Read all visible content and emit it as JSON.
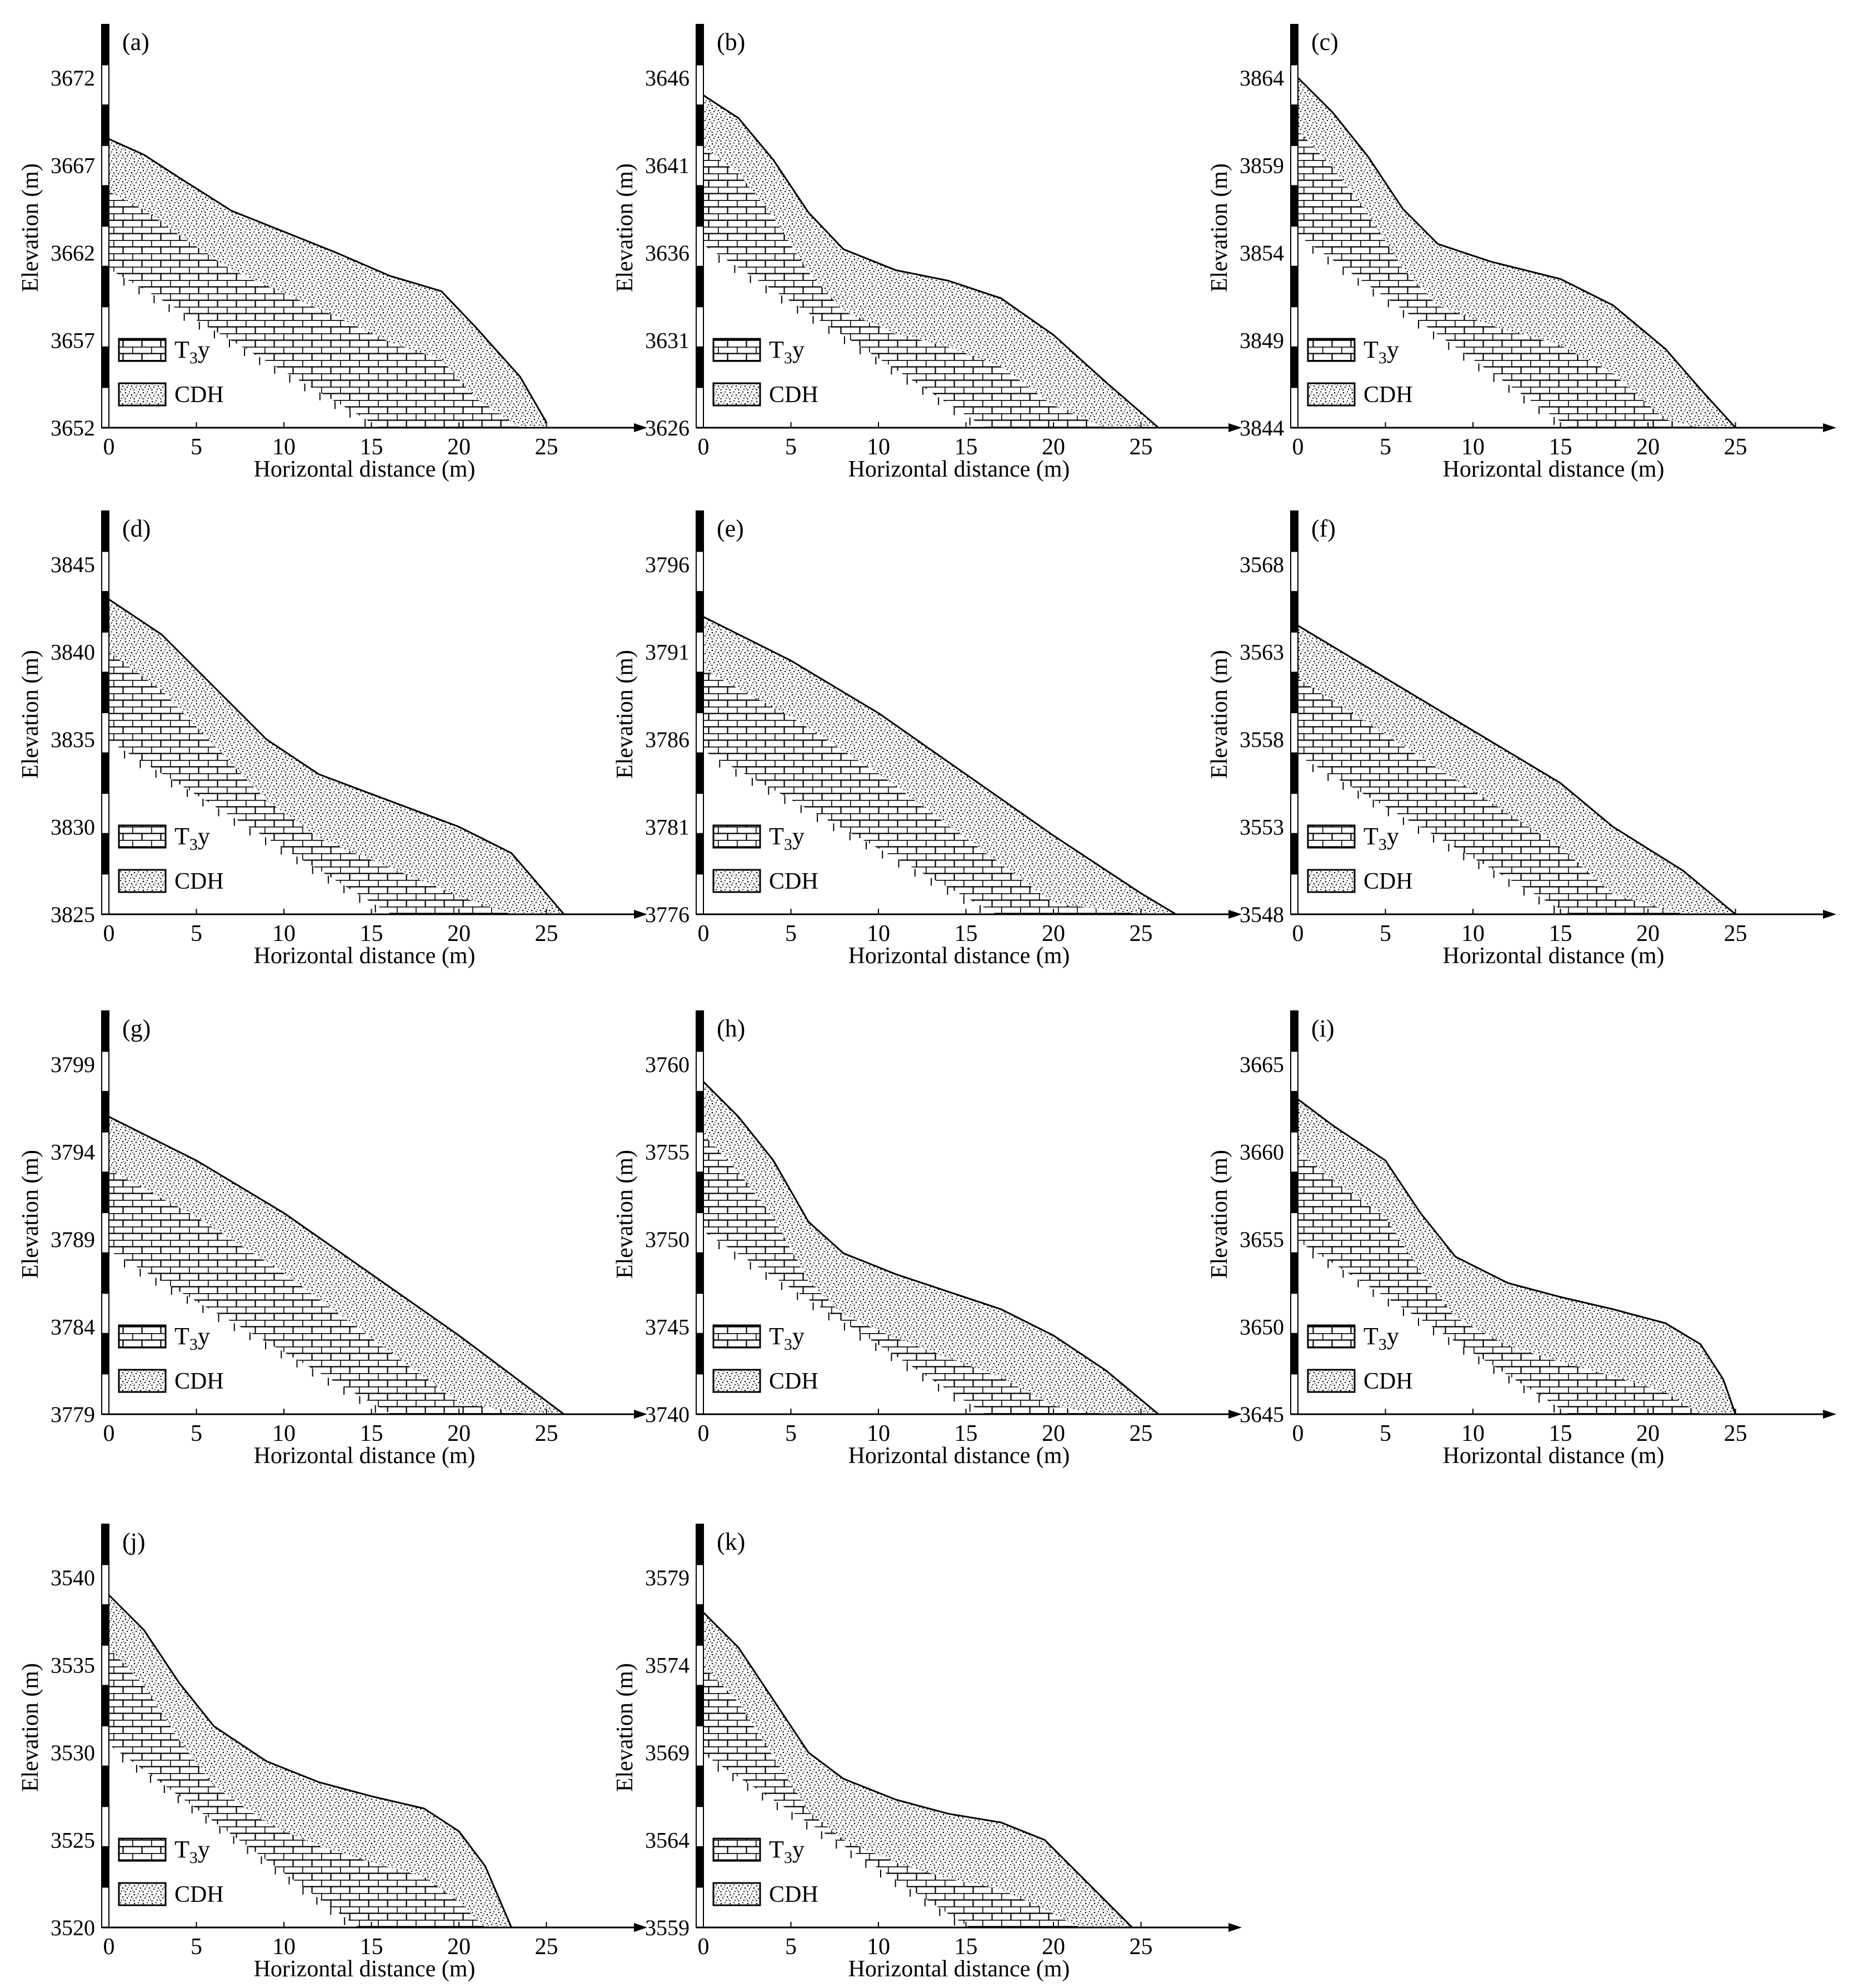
{
  "figure": {
    "x_axis_label": "Horizontal distance (m)",
    "y_axis_label": "Elevation (m)",
    "x_ticks": [
      0,
      5,
      10,
      15,
      20,
      25
    ],
    "legend": [
      {
        "symbol": "brick-pattern",
        "label_main": "T",
        "label_sub": "3",
        "label_tail": "y"
      },
      {
        "symbol": "stipple-pattern",
        "label_main": "CDH"
      }
    ],
    "colors": {
      "ink": "#000000",
      "background": "#ffffff"
    }
  },
  "panels": [
    {
      "label": "(a)",
      "y_ticks": [
        "3652",
        "3657",
        "3662",
        "3667",
        "3672"
      ],
      "y_min": 3652,
      "surface": [
        [
          0,
          3668.5
        ],
        [
          2,
          3667.6
        ],
        [
          4,
          3666.3
        ],
        [
          7,
          3664.4
        ],
        [
          10,
          3663.2
        ],
        [
          13,
          3662.0
        ],
        [
          16,
          3660.7
        ],
        [
          19,
          3659.8
        ],
        [
          21,
          3657.7
        ],
        [
          23.5,
          3654.9
        ],
        [
          25,
          3652.3
        ]
      ]
    },
    {
      "label": "(b)",
      "y_ticks": [
        "3626",
        "3631",
        "3636",
        "3641",
        "3646"
      ],
      "y_min": 3626,
      "surface": [
        [
          0,
          3645
        ],
        [
          2,
          3643.7
        ],
        [
          4,
          3641.3
        ],
        [
          6,
          3638.3
        ],
        [
          8,
          3636.2
        ],
        [
          11,
          3635
        ],
        [
          14,
          3634.4
        ],
        [
          17,
          3633.4
        ],
        [
          20,
          3631.3
        ],
        [
          23,
          3628.6
        ],
        [
          26,
          3626
        ]
      ]
    },
    {
      "label": "(c)",
      "y_ticks": [
        "3844",
        "3849",
        "3854",
        "3859",
        "3864"
      ],
      "y_min": 3844,
      "surface": [
        [
          0,
          3864
        ],
        [
          2,
          3862
        ],
        [
          4,
          3859.5
        ],
        [
          6,
          3856.5
        ],
        [
          8,
          3854.5
        ],
        [
          11,
          3853.5
        ],
        [
          15,
          3852.5
        ],
        [
          18,
          3851
        ],
        [
          21,
          3848.5
        ],
        [
          23,
          3846.2
        ],
        [
          25,
          3844
        ]
      ]
    },
    {
      "label": "(d)",
      "y_ticks": [
        "3825",
        "3830",
        "3835",
        "3840",
        "3845"
      ],
      "y_min": 3825,
      "surface": [
        [
          0,
          3843
        ],
        [
          3,
          3841
        ],
        [
          6,
          3838
        ],
        [
          9,
          3835
        ],
        [
          12,
          3833
        ],
        [
          16,
          3831.5
        ],
        [
          20,
          3830
        ],
        [
          23,
          3828.5
        ],
        [
          26,
          3825
        ]
      ]
    },
    {
      "label": "(e)",
      "y_ticks": [
        "3776",
        "3781",
        "3786",
        "3791",
        "3796"
      ],
      "y_min": 3776,
      "surface": [
        [
          0,
          3793
        ],
        [
          5,
          3790.5
        ],
        [
          10,
          3787.5
        ],
        [
          15,
          3784
        ],
        [
          20,
          3780.5
        ],
        [
          25,
          3777.2
        ],
        [
          27,
          3776
        ]
      ]
    },
    {
      "label": "(f)",
      "y_ticks": [
        "3548",
        "3553",
        "3558",
        "3563",
        "3568"
      ],
      "y_min": 3548,
      "surface": [
        [
          0,
          3564.5
        ],
        [
          5,
          3561.5
        ],
        [
          10,
          3558.5
        ],
        [
          15,
          3555.5
        ],
        [
          18,
          3553
        ],
        [
          22,
          3550.5
        ],
        [
          25,
          3548
        ]
      ]
    },
    {
      "label": "(g)",
      "y_ticks": [
        "3779",
        "3784",
        "3789",
        "3794",
        "3799"
      ],
      "y_min": 3779,
      "surface": [
        [
          0,
          3796
        ],
        [
          5,
          3793.5
        ],
        [
          10,
          3790.5
        ],
        [
          15,
          3787
        ],
        [
          20,
          3783.5
        ],
        [
          24,
          3780.5
        ],
        [
          26,
          3779
        ]
      ]
    },
    {
      "label": "(h)",
      "y_ticks": [
        "3740",
        "3745",
        "3750",
        "3755",
        "3760"
      ],
      "y_min": 3740,
      "surface": [
        [
          0,
          3759
        ],
        [
          2,
          3757
        ],
        [
          4,
          3754.5
        ],
        [
          6,
          3751
        ],
        [
          8,
          3749.2
        ],
        [
          11,
          3748
        ],
        [
          14,
          3747
        ],
        [
          17,
          3746
        ],
        [
          20,
          3744.5
        ],
        [
          23,
          3742.5
        ],
        [
          26,
          3740
        ]
      ]
    },
    {
      "label": "(i)",
      "y_ticks": [
        "3645",
        "3650",
        "3655",
        "3660",
        "3665"
      ],
      "y_min": 3645,
      "surface": [
        [
          0,
          3663
        ],
        [
          2,
          3661.5
        ],
        [
          5,
          3659.5
        ],
        [
          7,
          3656.5
        ],
        [
          9,
          3654
        ],
        [
          12,
          3652.5
        ],
        [
          15,
          3651.7
        ],
        [
          18,
          3651
        ],
        [
          21,
          3650.2
        ],
        [
          23,
          3649
        ],
        [
          24.3,
          3647
        ],
        [
          25,
          3645
        ]
      ]
    },
    {
      "label": "(j)",
      "y_ticks": [
        "3520",
        "3525",
        "3530",
        "3535",
        "3540"
      ],
      "y_min": 3520,
      "surface": [
        [
          0,
          3539
        ],
        [
          2,
          3537
        ],
        [
          4,
          3534
        ],
        [
          6,
          3531.5
        ],
        [
          9,
          3529.5
        ],
        [
          12,
          3528.3
        ],
        [
          15,
          3527.5
        ],
        [
          18,
          3526.8
        ],
        [
          20,
          3525.5
        ],
        [
          21.5,
          3523.5
        ],
        [
          23,
          3520
        ]
      ]
    },
    {
      "label": "(k)",
      "y_ticks": [
        "3559",
        "3564",
        "3569",
        "3574",
        "3579"
      ],
      "y_min": 3559,
      "surface": [
        [
          0,
          3577
        ],
        [
          2,
          3575
        ],
        [
          4,
          3572
        ],
        [
          6,
          3569
        ],
        [
          8,
          3567.5
        ],
        [
          11,
          3566.3
        ],
        [
          14,
          3565.5
        ],
        [
          17,
          3565
        ],
        [
          19.5,
          3564
        ],
        [
          21.5,
          3562
        ],
        [
          23,
          3560.5
        ],
        [
          24.5,
          3559
        ]
      ]
    }
  ]
}
